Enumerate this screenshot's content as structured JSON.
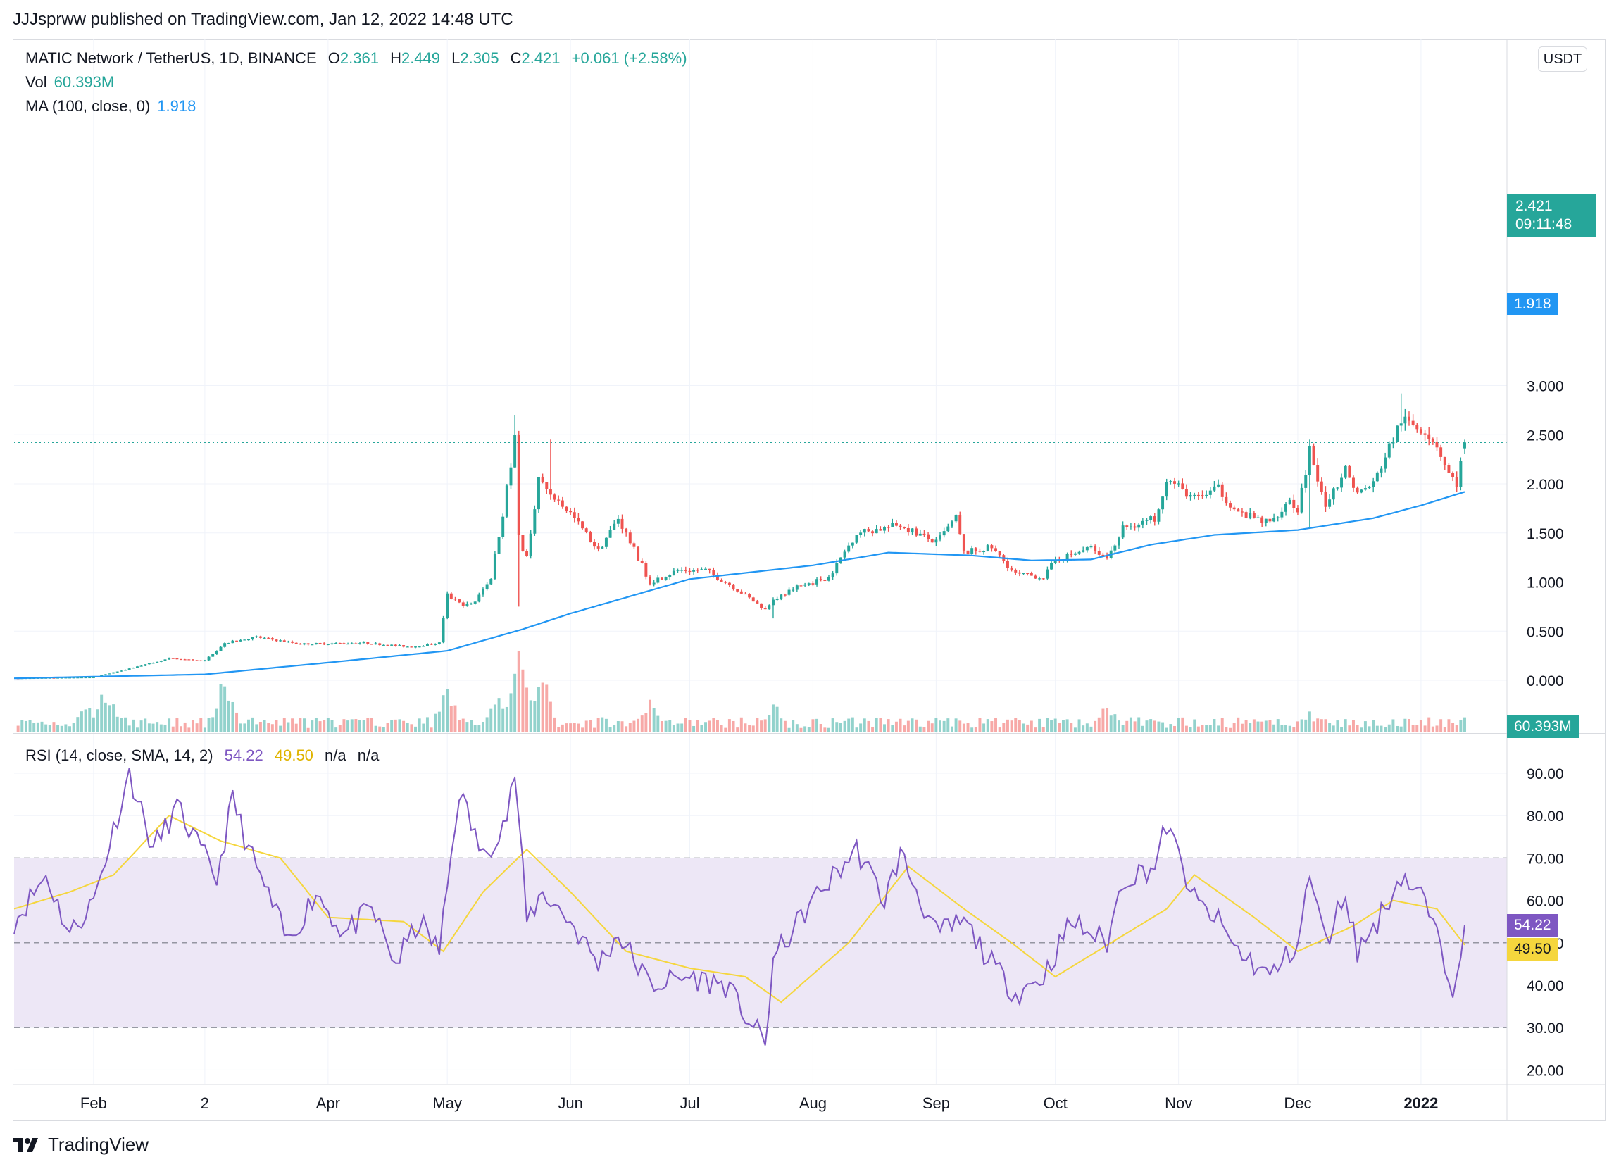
{
  "header": {
    "published": "JJJsprww published on TradingView.com, Jan 12, 2022 14:48 UTC"
  },
  "legend": {
    "symbol": "MATIC Network / TetherUS, 1D, BINANCE",
    "o_label": "O",
    "o": "2.361",
    "h_label": "H",
    "h": "2.449",
    "l_label": "L",
    "l": "2.305",
    "c_label": "C",
    "c": "2.421",
    "change": "+0.061 (+2.58%)",
    "vol_label": "Vol",
    "vol": "60.393M",
    "ma_label": "MA (100, close, 0)",
    "ma": "1.918",
    "rsi_label": "RSI (14, close, SMA, 14, 2)",
    "rsi": "54.22",
    "rsi_ma": "49.50",
    "na1": "n/a",
    "na2": "n/a"
  },
  "currency_button": "USDT",
  "price_tags": {
    "last": "2.421",
    "countdown": "09:11:48",
    "ma": "1.918",
    "vol": "60.393M",
    "rsi": "54.22",
    "rsi_ma": "49.50"
  },
  "colors": {
    "up": "#26a69a",
    "down": "#ef5350",
    "ma": "#2196f3",
    "rsi": "#7e57c2",
    "rsi_ma": "#f5d63d",
    "band": "#ede7f6"
  },
  "footer": {
    "brand": "TradingView"
  },
  "chart_data": [
    {
      "type": "candlestick",
      "title": "MATIC Network / TetherUS, 1D, BINANCE",
      "ylim": [
        -0.2,
        3.1
      ],
      "y_ticks": [
        "3.000",
        "2.500",
        "2.000",
        "1.500",
        "1.000",
        "0.500",
        "0.000"
      ],
      "x_ticks": [
        "Feb",
        "2",
        "Apr",
        "May",
        "Jun",
        "Jul",
        "Aug",
        "Sep",
        "Oct",
        "Nov",
        "Dec",
        "2022"
      ],
      "x_range": [
        "2021-01-12",
        "2022-01-12"
      ],
      "anchors_close": [
        [
          "2021-01-12",
          0.02
        ],
        [
          "2021-02-01",
          0.03
        ],
        [
          "2021-02-08",
          0.1
        ],
        [
          "2021-02-20",
          0.22
        ],
        [
          "2021-03-01",
          0.2
        ],
        [
          "2021-03-06",
          0.38
        ],
        [
          "2021-03-14",
          0.44
        ],
        [
          "2021-03-25",
          0.37
        ],
        [
          "2021-04-10",
          0.38
        ],
        [
          "2021-04-22",
          0.34
        ],
        [
          "2021-04-29",
          0.38
        ],
        [
          "2021-05-01",
          0.87
        ],
        [
          "2021-05-05",
          0.75
        ],
        [
          "2021-05-08",
          0.8
        ],
        [
          "2021-05-12",
          1.05
        ],
        [
          "2021-05-15",
          1.7
        ],
        [
          "2021-05-18",
          2.45
        ],
        [
          "2021-05-19",
          1.45
        ],
        [
          "2021-05-21",
          1.25
        ],
        [
          "2021-05-24",
          2.05
        ],
        [
          "2021-05-26",
          1.95
        ],
        [
          "2021-06-01",
          1.7
        ],
        [
          "2021-06-08",
          1.32
        ],
        [
          "2021-06-13",
          1.65
        ],
        [
          "2021-06-21",
          1.0
        ],
        [
          "2021-06-28",
          1.12
        ],
        [
          "2021-07-05",
          1.12
        ],
        [
          "2021-07-12",
          0.95
        ],
        [
          "2021-07-20",
          0.72
        ],
        [
          "2021-07-22",
          0.82
        ],
        [
          "2021-07-28",
          0.95
        ],
        [
          "2021-08-05",
          1.05
        ],
        [
          "2021-08-12",
          1.5
        ],
        [
          "2021-08-19",
          1.55
        ],
        [
          "2021-08-23",
          1.58
        ],
        [
          "2021-09-01",
          1.4
        ],
        [
          "2021-09-06",
          1.65
        ],
        [
          "2021-09-08",
          1.3
        ],
        [
          "2021-09-15",
          1.35
        ],
        [
          "2021-09-21",
          1.08
        ],
        [
          "2021-09-28",
          1.05
        ],
        [
          "2021-10-01",
          1.22
        ],
        [
          "2021-10-10",
          1.35
        ],
        [
          "2021-10-14",
          1.25
        ],
        [
          "2021-10-18",
          1.55
        ],
        [
          "2021-10-26",
          1.65
        ],
        [
          "2021-10-29",
          2.05
        ],
        [
          "2021-11-05",
          1.85
        ],
        [
          "2021-11-11",
          1.95
        ],
        [
          "2021-11-16",
          1.7
        ],
        [
          "2021-11-24",
          1.6
        ],
        [
          "2021-11-29",
          1.85
        ],
        [
          "2021-12-01",
          1.7
        ],
        [
          "2021-12-04",
          2.35
        ],
        [
          "2021-12-08",
          1.8
        ],
        [
          "2021-12-13",
          2.15
        ],
        [
          "2021-12-16",
          1.9
        ],
        [
          "2021-12-20",
          2.0
        ],
        [
          "2021-12-27",
          2.65
        ],
        [
          "2022-01-02",
          2.55
        ],
        [
          "2022-01-05",
          2.4
        ],
        [
          "2022-01-08",
          2.1
        ],
        [
          "2022-01-10",
          2.0
        ],
        [
          "2022-01-12",
          2.421
        ]
      ],
      "spikes_high": [
        [
          "2021-05-18",
          2.7
        ],
        [
          "2021-05-27",
          2.45
        ],
        [
          "2021-12-27",
          2.92
        ]
      ],
      "spikes_low": [
        [
          "2021-05-19",
          0.75
        ],
        [
          "2021-07-22",
          0.63
        ],
        [
          "2021-12-04",
          1.55
        ]
      ],
      "last_bar": {
        "date": "2022-01-12",
        "open": 2.361,
        "high": 2.449,
        "low": 2.305,
        "close": 2.421
      },
      "series": [
        {
          "name": "MA (100, close, 0)",
          "last": 1.918,
          "anchors": [
            [
              "2021-01-12",
              0.02
            ],
            [
              "2021-03-01",
              0.06
            ],
            [
              "2021-04-01",
              0.18
            ],
            [
              "2021-05-01",
              0.3
            ],
            [
              "2021-05-20",
              0.52
            ],
            [
              "2021-06-01",
              0.68
            ],
            [
              "2021-07-01",
              1.03
            ],
            [
              "2021-08-01",
              1.17
            ],
            [
              "2021-08-20",
              1.3
            ],
            [
              "2021-09-10",
              1.27
            ],
            [
              "2021-09-25",
              1.22
            ],
            [
              "2021-10-10",
              1.23
            ],
            [
              "2021-10-25",
              1.38
            ],
            [
              "2021-11-10",
              1.48
            ],
            [
              "2021-12-01",
              1.53
            ],
            [
              "2021-12-20",
              1.65
            ],
            [
              "2022-01-01",
              1.78
            ],
            [
              "2022-01-12",
              1.918
            ]
          ]
        },
        {
          "name": "Vol",
          "last": "60.393M",
          "peaks_millions": [
            [
              "2021-01-30",
              30
            ],
            [
              "2021-02-04",
              45
            ],
            [
              "2021-03-06",
              55
            ],
            [
              "2021-05-01",
              45
            ],
            [
              "2021-05-14",
              42
            ],
            [
              "2021-05-19",
              75
            ],
            [
              "2021-05-25",
              55
            ],
            [
              "2021-06-21",
              32
            ],
            [
              "2021-07-22",
              30
            ],
            [
              "2021-10-14",
              28
            ],
            [
              "2021-12-04",
              20
            ]
          ]
        }
      ]
    },
    {
      "type": "line",
      "title": "RSI (14, close, SMA, 14, 2)",
      "ylim": [
        18,
        94
      ],
      "y_ticks": [
        "90.00",
        "80.00",
        "70.00",
        "60.00",
        "50.00",
        "40.00",
        "30.00",
        "20.00"
      ],
      "bands": [
        30,
        50,
        70
      ],
      "series": [
        {
          "name": "RSI",
          "last": 54.22,
          "anchors": [
            [
              "2021-01-12",
              55
            ],
            [
              "2021-01-20",
              66
            ],
            [
              "2021-01-26",
              52
            ],
            [
              "2021-02-01",
              60
            ],
            [
              "2021-02-10",
              90
            ],
            [
              "2021-02-16",
              72
            ],
            [
              "2021-02-22",
              82
            ],
            [
              "2021-03-01",
              70
            ],
            [
              "2021-03-04",
              65
            ],
            [
              "2021-03-08",
              84
            ],
            [
              "2021-03-12",
              72
            ],
            [
              "2021-03-22",
              50
            ],
            [
              "2021-03-29",
              62
            ],
            [
              "2021-04-05",
              52
            ],
            [
              "2021-04-12",
              58
            ],
            [
              "2021-04-18",
              45
            ],
            [
              "2021-04-24",
              55
            ],
            [
              "2021-04-29",
              48
            ],
            [
              "2021-05-04",
              86
            ],
            [
              "2021-05-10",
              70
            ],
            [
              "2021-05-16",
              80
            ],
            [
              "2021-05-18",
              90
            ],
            [
              "2021-05-21",
              55
            ],
            [
              "2021-05-25",
              62
            ],
            [
              "2021-06-01",
              55
            ],
            [
              "2021-06-08",
              45
            ],
            [
              "2021-06-13",
              52
            ],
            [
              "2021-06-21",
              40
            ],
            [
              "2021-07-01",
              42
            ],
            [
              "2021-07-10",
              40
            ],
            [
              "2021-07-20",
              26
            ],
            [
              "2021-07-22",
              46
            ],
            [
              "2021-08-01",
              60
            ],
            [
              "2021-08-12",
              72
            ],
            [
              "2021-08-19",
              60
            ],
            [
              "2021-08-23",
              71
            ],
            [
              "2021-09-01",
              52
            ],
            [
              "2021-09-08",
              55
            ],
            [
              "2021-09-15",
              45
            ],
            [
              "2021-09-21",
              38
            ],
            [
              "2021-09-28",
              42
            ],
            [
              "2021-10-05",
              55
            ],
            [
              "2021-10-14",
              50
            ],
            [
              "2021-10-18",
              65
            ],
            [
              "2021-10-26",
              68
            ],
            [
              "2021-10-29",
              78
            ],
            [
              "2021-11-05",
              60
            ],
            [
              "2021-11-11",
              55
            ],
            [
              "2021-11-16",
              48
            ],
            [
              "2021-11-24",
              42
            ],
            [
              "2021-12-01",
              50
            ],
            [
              "2021-12-04",
              66
            ],
            [
              "2021-12-08",
              50
            ],
            [
              "2021-12-13",
              62
            ],
            [
              "2021-12-16",
              48
            ],
            [
              "2021-12-21",
              55
            ],
            [
              "2021-12-27",
              66
            ],
            [
              "2022-01-02",
              60
            ],
            [
              "2022-01-06",
              48
            ],
            [
              "2022-01-09",
              40
            ],
            [
              "2022-01-12",
              54.22
            ]
          ]
        },
        {
          "name": "RSI-based MA",
          "last": 49.5,
          "anchors": [
            [
              "2021-01-12",
              58
            ],
            [
              "2021-01-26",
              62
            ],
            [
              "2021-02-06",
              66
            ],
            [
              "2021-02-20",
              80
            ],
            [
              "2021-03-05",
              74
            ],
            [
              "2021-03-20",
              70
            ],
            [
              "2021-04-01",
              56
            ],
            [
              "2021-04-20",
              55
            ],
            [
              "2021-04-30",
              48
            ],
            [
              "2021-05-10",
              62
            ],
            [
              "2021-05-21",
              72
            ],
            [
              "2021-06-01",
              62
            ],
            [
              "2021-06-15",
              48
            ],
            [
              "2021-07-01",
              44
            ],
            [
              "2021-07-15",
              42
            ],
            [
              "2021-07-24",
              36
            ],
            [
              "2021-08-10",
              50
            ],
            [
              "2021-08-25",
              68
            ],
            [
              "2021-09-08",
              58
            ],
            [
              "2021-09-20",
              50
            ],
            [
              "2021-10-01",
              42
            ],
            [
              "2021-10-15",
              50
            ],
            [
              "2021-10-29",
              58
            ],
            [
              "2021-11-05",
              66
            ],
            [
              "2021-11-20",
              56
            ],
            [
              "2021-12-01",
              48
            ],
            [
              "2021-12-15",
              54
            ],
            [
              "2021-12-25",
              60
            ],
            [
              "2022-01-05",
              58
            ],
            [
              "2022-01-12",
              49.5
            ]
          ]
        }
      ]
    }
  ]
}
